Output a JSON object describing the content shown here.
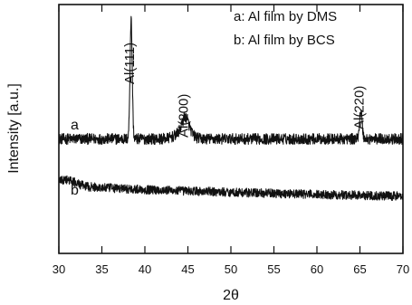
{
  "chart_data": {
    "type": "line",
    "xlabel": "2θ",
    "ylabel": "Intensity [a.u.]",
    "xlim": [
      30,
      70
    ],
    "ylim": [
      0,
      100
    ],
    "x_ticks": [
      30,
      35,
      40,
      45,
      50,
      55,
      60,
      65,
      70
    ],
    "y_ticks": [],
    "legend": {
      "placement": "top-right",
      "entries": [
        "a: Al film by DMS",
        "b: Al film by BCS"
      ]
    },
    "grid": false,
    "series": [
      {
        "name": "a",
        "baseline": 46,
        "noise_amplitude": 2.2,
        "peaks": [
          {
            "label": "Al(111)",
            "x": 38.4,
            "height": 48
          },
          {
            "label": "Al(200)",
            "x": 44.7,
            "height": 6
          },
          {
            "label": "Al(220)",
            "x": 65.1,
            "height": 11
          }
        ]
      },
      {
        "name": "b",
        "start_level": 28,
        "end_level": 23,
        "noise_amplitude": 1.8,
        "peaks": []
      }
    ]
  }
}
